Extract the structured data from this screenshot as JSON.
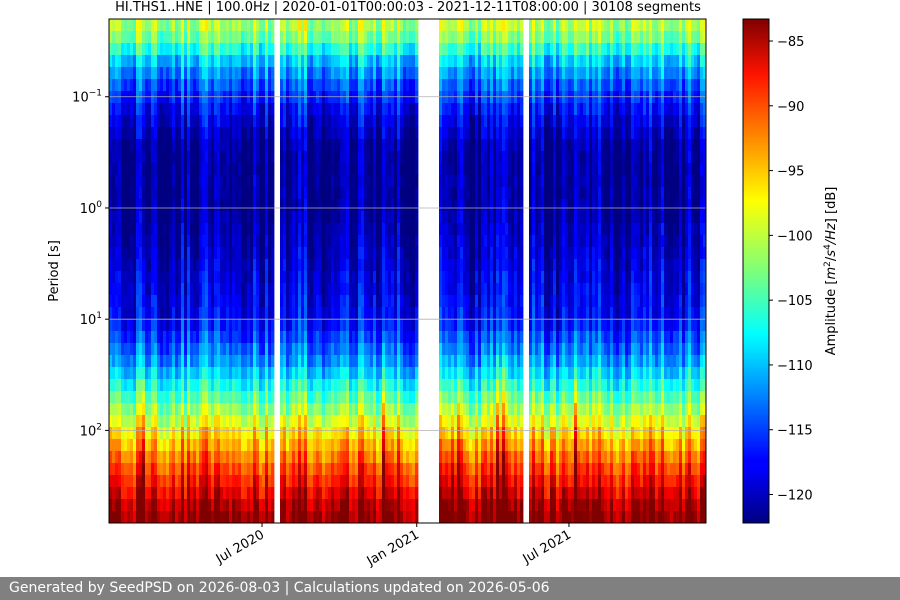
{
  "chart_data": {
    "type": "heatmap",
    "title": "HI.THS1..HNE | 100.0Hz | 2020-01-01T00:00:03 - 2021-12-11T08:00:00 | 30108 segments",
    "xlabel": "",
    "ylabel": "Period [s]",
    "x_scale": "time",
    "y_scale": "log",
    "y_inverted": true,
    "xlim": [
      "2020-01-01",
      "2021-12-11"
    ],
    "ylim": [
      0.02,
      680
    ],
    "x_ticks": [
      {
        "value": "2020-07-01",
        "label": "Jul 2020"
      },
      {
        "value": "2021-01-01",
        "label": "Jan 2021"
      },
      {
        "value": "2021-07-01",
        "label": "Jul 2021"
      }
    ],
    "y_ticks": [
      {
        "value": 0.1,
        "base": "10",
        "exp": "−1"
      },
      {
        "value": 1,
        "base": "10",
        "exp": "0"
      },
      {
        "value": 10,
        "base": "10",
        "exp": "1"
      },
      {
        "value": 100,
        "base": "10",
        "exp": "2"
      }
    ],
    "grid": true,
    "colormap": "jet",
    "colorbar": {
      "label_prefix": "Amplitude [",
      "label_m": "m",
      "label_sq": "2",
      "label_slash": "/",
      "label_s": "s",
      "label_4": "4",
      "label_hz": "/Hz",
      "label_suffix": "] [dB]",
      "range": [
        -122.2,
        -83.3
      ],
      "ticks": [
        -85,
        -90,
        -95,
        -100,
        -105,
        -110,
        -115,
        -120
      ],
      "tick_labels": [
        "−85",
        "−90",
        "−95",
        "−100",
        "−105",
        "−110",
        "−115",
        "−120"
      ]
    },
    "data_gaps": [
      {
        "start": "2020-07-16",
        "end": "2020-07-24"
      },
      {
        "start": "2021-01-02",
        "end": "2021-01-27"
      },
      {
        "start": "2021-05-07",
        "end": "2021-05-14"
      }
    ],
    "spectrum_profile": [
      {
        "period": 0.02,
        "db": -100
      },
      {
        "period": 0.03,
        "db": -103
      },
      {
        "period": 0.05,
        "db": -110
      },
      {
        "period": 0.08,
        "db": -114
      },
      {
        "period": 0.15,
        "db": -118
      },
      {
        "period": 0.3,
        "db": -121
      },
      {
        "period": 1,
        "db": -121
      },
      {
        "period": 3,
        "db": -119
      },
      {
        "period": 10,
        "db": -117
      },
      {
        "period": 25,
        "db": -111
      },
      {
        "period": 50,
        "db": -104
      },
      {
        "period": 100,
        "db": -97
      },
      {
        "period": 200,
        "db": -91
      },
      {
        "period": 350,
        "db": -87
      },
      {
        "period": 500,
        "db": -84
      },
      {
        "period": 680,
        "db": -83
      }
    ]
  },
  "footer": {
    "text": "Generated by SeedPSD on 2026-08-03 | Calculations updated on 2026-05-06"
  }
}
